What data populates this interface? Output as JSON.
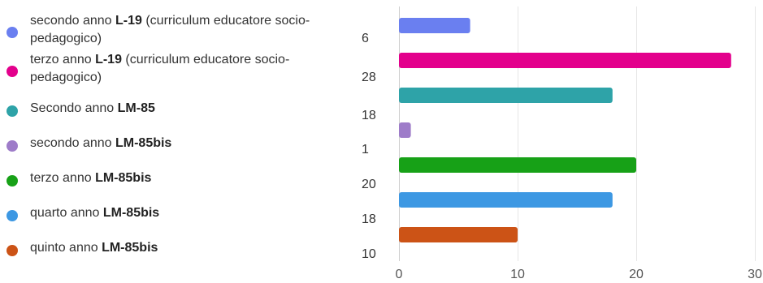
{
  "chart_data": {
    "type": "bar",
    "orientation": "horizontal",
    "categories": [
      {
        "pre": "secondo anno ",
        "bold": "L-19",
        "post": "  (curriculum educatore socio-pedagogico)"
      },
      {
        "pre": "terzo anno ",
        "bold": "L-19",
        "post": " (curriculum educatore socio-pedagogico)"
      },
      {
        "pre": "Secondo anno ",
        "bold": "LM-85",
        "post": ""
      },
      {
        "pre": "secondo anno ",
        "bold": "LM-85bis",
        "post": ""
      },
      {
        "pre": "terzo anno ",
        "bold": "LM-85bis",
        "post": ""
      },
      {
        "pre": "quarto anno ",
        "bold": "LM-85bis",
        "post": ""
      },
      {
        "pre": "quinto anno ",
        "bold": "LM-85bis",
        "post": ""
      }
    ],
    "values": [
      6,
      28,
      18,
      1,
      20,
      18,
      10
    ],
    "value_labels": [
      "6",
      "28",
      "18",
      "1",
      "20",
      "18",
      "10"
    ],
    "colors": [
      "#6a7ff0",
      "#e3008c",
      "#2ea3a8",
      "#9e7cc9",
      "#17a117",
      "#3d98e3",
      "#cc5316"
    ],
    "xlim": [
      0,
      30
    ],
    "xticks": [
      0,
      10,
      20,
      30
    ],
    "xtick_labels": [
      "0",
      "10",
      "20",
      "30"
    ],
    "grid": true,
    "legend_placement": "left",
    "title": "",
    "xlabel": "",
    "ylabel": ""
  }
}
